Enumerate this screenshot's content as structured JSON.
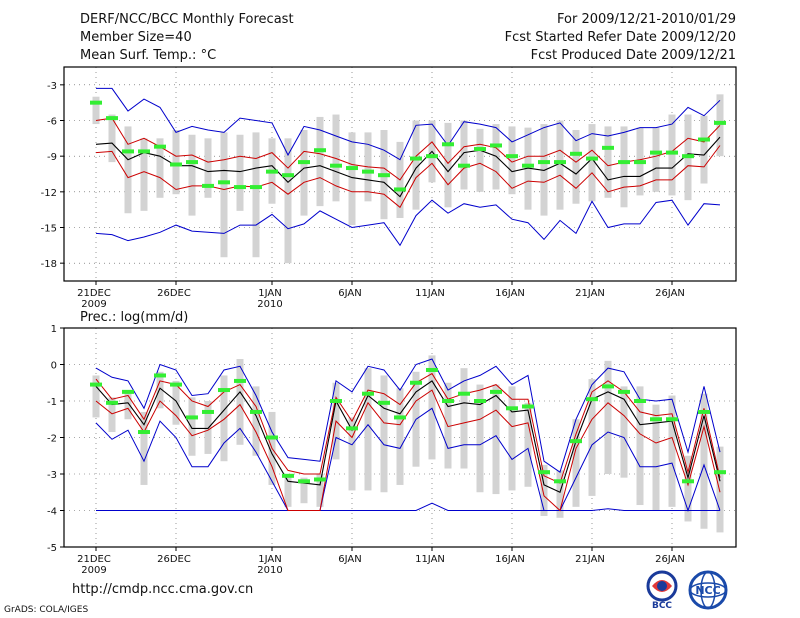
{
  "header": {
    "title": "DERF/NCC/BCC Monthly Forecast",
    "member_size": "Member Size=40",
    "variable": "Mean Surf. Temp.: °C",
    "period": "For 2009/12/21-2010/01/29",
    "refer_date": "Fcst Started Refer Date 2009/12/20",
    "produced_date": "Fcst Produced Date 2009/12/21"
  },
  "footer": {
    "url": "http://cmdp.ncc.cma.gov.cn",
    "credit": "GrADS: COLA/IGES",
    "logo_bcc": "BCC",
    "logo_ncc": "NCC"
  },
  "colors": {
    "box": "#d3d3d3",
    "green": "#33ee33",
    "blue": "#0000cc",
    "red": "#cc0000",
    "median": "#000000",
    "frame": "#000000"
  },
  "chart_data": [
    {
      "type": "line",
      "title": "Mean Surf. Temp.: °C",
      "ylabel": "°C",
      "ylim": [
        -19.5,
        -1.5
      ],
      "yticks": [
        -3,
        -6,
        -9,
        -12,
        -15,
        -18
      ],
      "ytick_labels": [
        "-3",
        "-6",
        "-9",
        "-12",
        "-15",
        "-18"
      ],
      "days": 40,
      "xtick_days": [
        0,
        5,
        11,
        16,
        21,
        26,
        31,
        36
      ],
      "xtick_labels": [
        "21DEC",
        "26DEC",
        "1JAN",
        "6JAN",
        "11JAN",
        "16JAN",
        "21JAN",
        "26JAN"
      ],
      "xtick_years": {
        "0": "2009",
        "11": "2010"
      },
      "obs": [
        -4.5,
        -5.8,
        -8.6,
        -8.6,
        -8.2,
        -9.7,
        -9.5,
        -11.5,
        -11.2,
        -11.6,
        -11.6,
        -10.3,
        -10.6,
        -9.5,
        -8.5,
        -9.8,
        -10.0,
        -10.3,
        -10.6,
        -11.8,
        -9.2,
        -9.0,
        -8.0,
        -9.8,
        -8.4,
        -8.1,
        -9.0,
        -9.8,
        -9.5,
        -9.5,
        -8.8,
        -9.2,
        -8.3,
        -9.5,
        -9.5,
        -8.7,
        -8.7,
        -9.0,
        -7.6,
        -6.2
      ],
      "max": [
        -3.3,
        -3.3,
        -5.2,
        -4.2,
        -4.9,
        -7.0,
        -6.5,
        -6.8,
        -7.0,
        -5.8,
        -6.0,
        -6.2,
        -8.9,
        -6.5,
        -6.8,
        -7.3,
        -7.8,
        -8.0,
        -8.5,
        -9.3,
        -6.4,
        -6.3,
        -8.1,
        -6.1,
        -6.3,
        -6.6,
        -7.8,
        -7.2,
        -6.6,
        -6.2,
        -7.7,
        -7.1,
        -7.3,
        -7.0,
        -6.6,
        -6.6,
        -6.3,
        -4.9,
        -5.6,
        -4.3
      ],
      "upper": [
        -6.0,
        -5.8,
        -8.0,
        -7.5,
        -8.2,
        -9.0,
        -8.9,
        -9.5,
        -9.3,
        -9.0,
        -9.2,
        -8.7,
        -10.0,
        -8.6,
        -8.8,
        -9.2,
        -9.7,
        -9.9,
        -10.0,
        -11.0,
        -9.0,
        -7.8,
        -9.6,
        -8.2,
        -8.0,
        -8.3,
        -9.5,
        -9.0,
        -9.0,
        -8.5,
        -9.5,
        -8.5,
        -9.8,
        -9.5,
        -9.3,
        -9.0,
        -8.6,
        -7.5,
        -7.8,
        -6.4
      ],
      "median": [
        -8.0,
        -7.9,
        -9.3,
        -8.7,
        -9.0,
        -9.8,
        -9.8,
        -10.3,
        -10.2,
        -10.3,
        -10.0,
        -9.8,
        -11.2,
        -10.0,
        -9.8,
        -10.3,
        -10.8,
        -11.0,
        -11.2,
        -12.4,
        -10.0,
        -8.6,
        -10.3,
        -8.7,
        -8.5,
        -9.0,
        -10.3,
        -10.0,
        -10.2,
        -9.6,
        -10.5,
        -9.2,
        -11.0,
        -10.7,
        -10.7,
        -10.0,
        -10.0,
        -8.8,
        -8.9,
        -7.4
      ],
      "lower": [
        -8.7,
        -8.6,
        -10.8,
        -10.3,
        -10.8,
        -11.8,
        -11.5,
        -11.5,
        -11.8,
        -11.5,
        -11.6,
        -11.2,
        -12.2,
        -11.2,
        -10.8,
        -11.5,
        -12.0,
        -12.0,
        -12.2,
        -13.3,
        -10.8,
        -9.6,
        -11.4,
        -10.0,
        -9.6,
        -10.3,
        -11.7,
        -11.1,
        -11.2,
        -10.6,
        -11.7,
        -10.4,
        -12.0,
        -11.6,
        -11.5,
        -11.0,
        -11.0,
        -9.8,
        -9.9,
        -8.1
      ],
      "min": [
        -15.5,
        -15.6,
        -16.1,
        -15.8,
        -15.4,
        -14.8,
        -15.3,
        -15.4,
        -15.5,
        -14.8,
        -14.8,
        -13.9,
        -15.1,
        -14.7,
        -13.6,
        -14.3,
        -15.0,
        -14.8,
        -14.6,
        -16.5,
        -14.0,
        -12.7,
        -13.8,
        -13.0,
        -13.3,
        -13.1,
        -14.3,
        -14.6,
        -16.0,
        -14.4,
        -15.5,
        -12.8,
        -15.0,
        -14.7,
        -14.7,
        -12.9,
        -12.7,
        -14.8,
        -13.0,
        -13.1
      ],
      "box_hi": [
        -4.0,
        -5.5,
        -6.5,
        -7.5,
        -7.5,
        -6.8,
        -7.2,
        -7.5,
        -7.0,
        -7.2,
        -7.0,
        -7.5,
        -7.5,
        -6.8,
        -5.7,
        -5.5,
        -7.0,
        -7.0,
        -6.8,
        -7.8,
        -6.0,
        -6.0,
        -6.2,
        -6.0,
        -6.7,
        -6.3,
        -6.5,
        -6.6,
        -6.3,
        -6.0,
        -6.8,
        -6.3,
        -6.5,
        -6.5,
        -6.6,
        -6.6,
        -5.5,
        -5.5,
        -5.6,
        -3.8
      ],
      "box_lo": [
        -6.3,
        -9.5,
        -13.8,
        -13.6,
        -12.5,
        -12.2,
        -14.0,
        -12.5,
        -17.5,
        -13.6,
        -17.5,
        -13.0,
        -18.0,
        -14.0,
        -13.2,
        -12.8,
        -14.8,
        -12.8,
        -14.3,
        -14.2,
        -13.5,
        -11.2,
        -13.3,
        -11.8,
        -12.0,
        -11.8,
        -12.2,
        -13.5,
        -14.0,
        -13.5,
        -13.0,
        -12.8,
        -12.5,
        -13.3,
        -12.3,
        -12.0,
        -12.3,
        -12.7,
        -11.3,
        -9.0
      ]
    },
    {
      "type": "line",
      "title": "Prec.: log(mm/d)",
      "ylabel": "log(mm/d)",
      "ylim": [
        -5,
        1
      ],
      "yticks": [
        1,
        0,
        -1,
        -2,
        -3,
        -4,
        -5
      ],
      "ytick_labels": [
        "1",
        "0",
        "-1",
        "-2",
        "-3",
        "-4",
        "-5"
      ],
      "days": 40,
      "xtick_days": [
        0,
        5,
        11,
        16,
        21,
        26,
        31,
        36
      ],
      "xtick_labels": [
        "21DEC",
        "26DEC",
        "1JAN",
        "6JAN",
        "11JAN",
        "16JAN",
        "21JAN",
        "26JAN"
      ],
      "xtick_years": {
        "0": "2009",
        "11": "2010"
      },
      "obs": [
        -0.55,
        -1.05,
        -0.75,
        -1.85,
        -0.3,
        -0.55,
        -1.45,
        -1.3,
        -0.7,
        -0.45,
        -1.3,
        -2.0,
        -3.05,
        -3.2,
        -3.15,
        -1.0,
        -1.75,
        -0.8,
        -1.05,
        -1.45,
        -0.5,
        -0.15,
        -1.0,
        -0.8,
        -1.0,
        -0.75,
        -1.2,
        -1.15,
        -2.95,
        -3.2,
        -2.1,
        -0.95,
        -0.6,
        -0.75,
        -1.0,
        -1.5,
        -1.5,
        -3.2,
        -1.3,
        -2.95
      ],
      "max": [
        -0.1,
        -0.35,
        -0.45,
        -1.2,
        0.0,
        -0.15,
        -0.85,
        -0.8,
        -0.15,
        -0.05,
        -0.85,
        -1.85,
        -2.55,
        -2.6,
        -2.65,
        -0.45,
        -0.75,
        -0.05,
        -0.15,
        -0.7,
        0.0,
        0.15,
        -0.7,
        -0.45,
        -0.3,
        -0.05,
        -0.55,
        -0.3,
        -2.65,
        -2.95,
        -1.5,
        -0.55,
        -0.1,
        -0.2,
        -0.95,
        -1.0,
        -0.95,
        -2.4,
        -0.6,
        -2.4
      ],
      "upper": [
        -0.4,
        -0.95,
        -0.85,
        -1.5,
        -0.45,
        -0.55,
        -1.0,
        -1.15,
        -0.75,
        -0.55,
        -1.15,
        -2.3,
        -2.9,
        -3.0,
        -3.0,
        -0.9,
        -1.55,
        -0.7,
        -0.8,
        -1.1,
        -0.5,
        -0.25,
        -0.95,
        -0.8,
        -0.7,
        -0.55,
        -0.95,
        -0.95,
        -3.05,
        -3.25,
        -1.9,
        -0.75,
        -0.45,
        -0.75,
        -1.3,
        -1.4,
        -1.35,
        -2.95,
        -1.2,
        -3.1
      ],
      "median": [
        -0.6,
        -1.1,
        -1.05,
        -1.65,
        -0.65,
        -1.0,
        -1.75,
        -1.75,
        -1.25,
        -0.75,
        -1.4,
        -2.45,
        -3.2,
        -3.25,
        -3.3,
        -1.0,
        -1.8,
        -0.85,
        -1.2,
        -1.35,
        -0.75,
        -0.45,
        -1.15,
        -1.05,
        -1.1,
        -0.85,
        -1.3,
        -1.25,
        -3.3,
        -3.5,
        -2.1,
        -0.95,
        -0.75,
        -0.95,
        -1.65,
        -1.6,
        -1.55,
        -3.1,
        -1.4,
        -3.2
      ],
      "lower": [
        -1.0,
        -1.35,
        -1.2,
        -1.85,
        -1.0,
        -1.4,
        -1.95,
        -1.8,
        -1.5,
        -1.1,
        -1.85,
        -2.8,
        -4.0,
        -4.0,
        -4.0,
        -1.55,
        -2.0,
        -1.05,
        -1.6,
        -1.65,
        -1.0,
        -0.7,
        -1.7,
        -1.6,
        -1.5,
        -1.25,
        -1.7,
        -1.6,
        -3.6,
        -4.0,
        -2.3,
        -1.5,
        -1.05,
        -1.4,
        -1.9,
        -2.15,
        -2.0,
        -3.3,
        -1.7,
        -3.5
      ],
      "min": [
        -1.6,
        -2.05,
        -1.8,
        -2.65,
        -1.55,
        -2.0,
        -2.8,
        -2.8,
        -2.15,
        -1.75,
        -2.4,
        -3.2,
        -4.0,
        -4.0,
        -4.0,
        -2.0,
        -2.2,
        -1.65,
        -2.2,
        -2.3,
        -1.5,
        -1.2,
        -2.3,
        -2.2,
        -2.2,
        -1.95,
        -2.6,
        -2.3,
        -4.0,
        -4.0,
        -3.1,
        -2.2,
        -1.85,
        -2.0,
        -2.8,
        -2.8,
        -2.7,
        -4.0,
        -2.75,
        -4.0
      ],
      "floor": [
        -4.0,
        -4.0,
        -4.0,
        -4.0,
        -4.0,
        -4.0,
        -4.0,
        -4.0,
        -4.0,
        -4.0,
        -4.0,
        -4.0,
        -4.0,
        -4.0,
        -4.0,
        -4.0,
        -4.0,
        -4.0,
        -4.0,
        -4.0,
        -4.0,
        -3.8,
        -4.0,
        -4.0,
        -4.0,
        -4.0,
        -4.0,
        -4.0,
        -4.0,
        -4.0,
        -4.0,
        -4.0,
        -3.95,
        -4.0,
        -4.0,
        -4.0,
        -4.0,
        -4.0,
        -4.0,
        -4.0
      ],
      "box_hi": [
        -0.3,
        -0.9,
        -0.7,
        -1.3,
        -0.2,
        -0.45,
        -0.9,
        -1.0,
        -0.3,
        0.15,
        -0.6,
        -1.3,
        -3.0,
        -3.1,
        -3.0,
        -0.5,
        -1.45,
        -0.1,
        -0.3,
        -0.65,
        -0.2,
        0.25,
        -0.5,
        -0.1,
        -0.55,
        -0.55,
        -0.6,
        -1.05,
        -2.75,
        -2.9,
        -1.5,
        -0.4,
        0.1,
        -0.6,
        -0.6,
        -1.1,
        -0.85,
        -2.5,
        -0.8,
        -2.25
      ],
      "box_hi_note": "",
      "box_lo": [
        -1.45,
        -1.85,
        -1.5,
        -3.3,
        -1.2,
        -1.65,
        -2.5,
        -2.45,
        -2.65,
        -2.2,
        -2.5,
        -3.3,
        -3.9,
        -3.8,
        -3.9,
        -2.6,
        -3.45,
        -3.45,
        -3.5,
        -3.3,
        -2.8,
        -2.6,
        -2.85,
        -2.85,
        -3.5,
        -3.55,
        -3.45,
        -3.35,
        -4.15,
        -4.2,
        -3.9,
        -3.6,
        -3.0,
        -3.1,
        -3.85,
        -4.0,
        -3.9,
        -4.3,
        -4.5,
        -4.6
      ]
    }
  ]
}
